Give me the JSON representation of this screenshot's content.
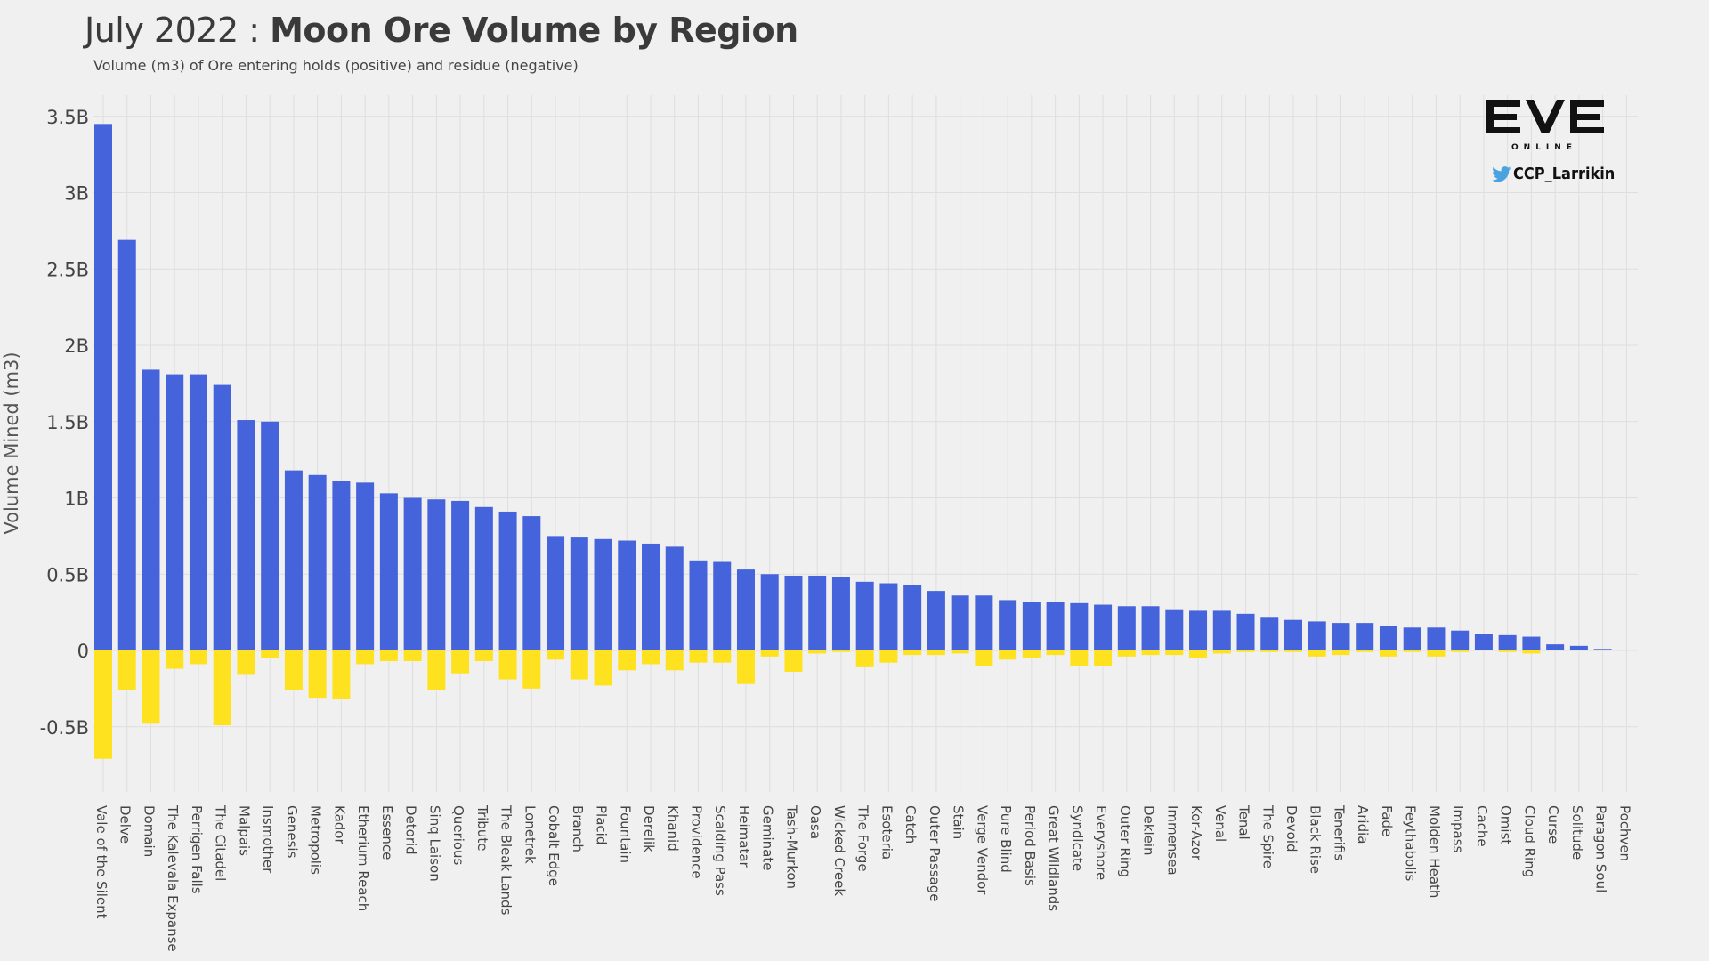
{
  "title": {
    "prefix": "July 2022 : ",
    "main": "Moon Ore Volume by Region"
  },
  "subtitle": "Volume (m3) of Ore entering holds (positive) and residue (negative)",
  "branding": {
    "logo_text": "ONLINE",
    "twitter_handle": "CCP_Larrikin",
    "twitter_icon": "twitter-bird-icon",
    "twitter_color": "#4aa3df"
  },
  "colors": {
    "positive": "#4563db",
    "negative": "#ffe21f",
    "background": "#f0f0f0",
    "grid": "#dedede"
  },
  "chart_data": {
    "type": "bar",
    "ylabel": "Volume Mined (m3)",
    "xlabel": "",
    "ylim": [
      -0.85,
      3.6
    ],
    "yticks": [
      -0.5,
      0,
      0.5,
      1,
      1.5,
      2,
      2.5,
      3,
      3.5
    ],
    "ytick_labels": [
      "-0.5B",
      "0",
      "0.5B",
      "1B",
      "1.5B",
      "2B",
      "2.5B",
      "3B",
      "3.5B"
    ],
    "unit": "B",
    "grid": true,
    "categories": [
      "Vale of the Silent",
      "Delve",
      "Domain",
      "The Kalevala Expanse",
      "Perrigen Falls",
      "The Citadel",
      "Malpais",
      "Insmother",
      "Genesis",
      "Metropolis",
      "Kador",
      "Etherium Reach",
      "Essence",
      "Detorid",
      "Sinq Laison",
      "Querious",
      "Tribute",
      "The Bleak Lands",
      "Lonetrek",
      "Cobalt Edge",
      "Branch",
      "Placid",
      "Fountain",
      "Derelik",
      "Khanid",
      "Providence",
      "Scalding Pass",
      "Heimatar",
      "Geminate",
      "Tash-Murkon",
      "Oasa",
      "Wicked Creek",
      "The Forge",
      "Esoteria",
      "Catch",
      "Outer Passage",
      "Stain",
      "Verge Vendor",
      "Pure Blind",
      "Period Basis",
      "Great Wildlands",
      "Syndicate",
      "Everyshore",
      "Outer Ring",
      "Deklein",
      "Immensea",
      "Kor-Azor",
      "Venal",
      "Tenal",
      "The Spire",
      "Devoid",
      "Black Rise",
      "Tenerifis",
      "Aridia",
      "Fade",
      "Feythabolis",
      "Molden Heath",
      "Impass",
      "Cache",
      "Omist",
      "Cloud Ring",
      "Curse",
      "Solitude",
      "Paragon Soul",
      "Pochven"
    ],
    "series": [
      {
        "name": "Ore entering holds (positive)",
        "values": [
          3.45,
          2.69,
          1.84,
          1.81,
          1.81,
          1.74,
          1.51,
          1.5,
          1.18,
          1.15,
          1.11,
          1.1,
          1.03,
          1.0,
          0.99,
          0.98,
          0.94,
          0.91,
          0.88,
          0.75,
          0.74,
          0.73,
          0.72,
          0.7,
          0.68,
          0.59,
          0.58,
          0.53,
          0.5,
          0.49,
          0.49,
          0.48,
          0.45,
          0.44,
          0.43,
          0.39,
          0.36,
          0.36,
          0.33,
          0.32,
          0.32,
          0.31,
          0.3,
          0.29,
          0.29,
          0.27,
          0.26,
          0.26,
          0.24,
          0.22,
          0.2,
          0.19,
          0.18,
          0.18,
          0.16,
          0.15,
          0.15,
          0.13,
          0.11,
          0.1,
          0.09,
          0.04,
          0.03,
          0.01,
          0.0
        ]
      },
      {
        "name": "Residue (negative)",
        "values": [
          -0.71,
          -0.26,
          -0.48,
          -0.12,
          -0.09,
          -0.49,
          -0.16,
          -0.05,
          -0.26,
          -0.31,
          -0.32,
          -0.09,
          -0.07,
          -0.07,
          -0.26,
          -0.15,
          -0.07,
          -0.19,
          -0.25,
          -0.06,
          -0.19,
          -0.23,
          -0.13,
          -0.09,
          -0.13,
          -0.08,
          -0.08,
          -0.22,
          -0.04,
          -0.14,
          -0.02,
          -0.01,
          -0.11,
          -0.08,
          -0.03,
          -0.03,
          -0.02,
          -0.1,
          -0.06,
          -0.05,
          -0.03,
          -0.1,
          -0.1,
          -0.04,
          -0.03,
          -0.03,
          -0.05,
          -0.02,
          -0.01,
          -0.01,
          -0.01,
          -0.04,
          -0.03,
          -0.01,
          -0.04,
          -0.01,
          -0.04,
          -0.01,
          0.0,
          -0.01,
          -0.02,
          0.0,
          0.0,
          0.0,
          0.0
        ]
      }
    ]
  }
}
